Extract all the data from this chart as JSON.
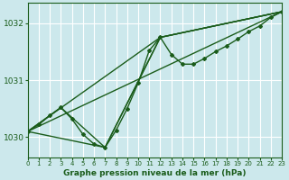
{
  "background_color": "#cce8ec",
  "plot_bg_color": "#cce8ec",
  "grid_color": "#ffffff",
  "line_color": "#1a5c1a",
  "title": "Graphe pression niveau de la mer (hPa)",
  "xlim": [
    0,
    23
  ],
  "ylim": [
    1029.65,
    1032.35
  ],
  "yticks": [
    1030,
    1031,
    1032
  ],
  "xticks": [
    0,
    1,
    2,
    3,
    4,
    5,
    6,
    7,
    8,
    9,
    10,
    11,
    12,
    13,
    14,
    15,
    16,
    17,
    18,
    19,
    20,
    21,
    22,
    23
  ],
  "main_line": {
    "x": [
      0,
      1,
      2,
      3,
      4,
      5,
      6,
      7,
      8,
      9,
      10,
      11,
      12,
      13,
      14,
      15,
      16,
      17,
      18,
      19,
      20,
      21,
      22,
      23
    ],
    "y": [
      1030.1,
      1030.22,
      1030.38,
      1030.52,
      1030.32,
      1030.05,
      1029.88,
      1029.82,
      1030.12,
      1030.5,
      1030.95,
      1031.52,
      1031.75,
      1031.45,
      1031.28,
      1031.28,
      1031.38,
      1031.5,
      1031.6,
      1031.72,
      1031.85,
      1031.95,
      1032.1,
      1032.2
    ]
  },
  "straight_line": {
    "x": [
      0,
      23
    ],
    "y": [
      1030.1,
      1032.2
    ]
  },
  "forecast1": {
    "x": [
      0,
      12,
      23
    ],
    "y": [
      1030.1,
      1031.75,
      1032.2
    ]
  },
  "forecast2": {
    "x": [
      0,
      7,
      12,
      23
    ],
    "y": [
      1030.1,
      1029.82,
      1031.75,
      1032.2
    ]
  },
  "forecast3": {
    "x": [
      0,
      3,
      7,
      12,
      23
    ],
    "y": [
      1030.1,
      1030.52,
      1029.82,
      1031.75,
      1032.2
    ]
  }
}
